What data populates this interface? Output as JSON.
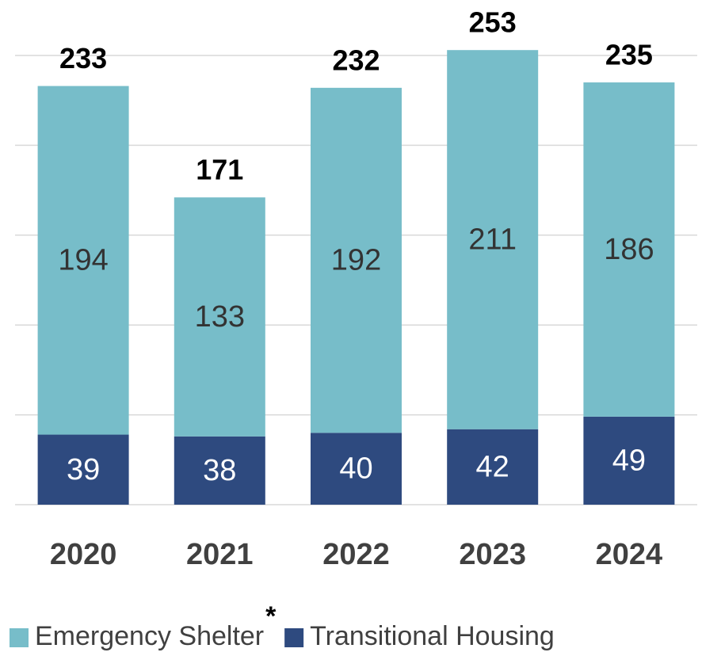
{
  "chart_data": {
    "type": "stacked_bar",
    "categories": [
      "2020",
      "2021",
      "2022",
      "2023",
      "2024"
    ],
    "series": [
      {
        "name": "Transitional Housing",
        "color": "#2e4a7f",
        "values": [
          39,
          38,
          40,
          42,
          49
        ]
      },
      {
        "name": "Emergency Shelter",
        "color": "#77bdc9",
        "values": [
          194,
          133,
          192,
          211,
          186
        ]
      }
    ],
    "totals": [
      233,
      171,
      232,
      253,
      235
    ],
    "legend_order": [
      1,
      0
    ],
    "annotations": [
      "*"
    ],
    "ylim": [
      0,
      250
    ],
    "yticks": [
      0,
      50,
      100,
      150,
      200,
      250
    ],
    "grid": true,
    "ytick_labels": false
  }
}
